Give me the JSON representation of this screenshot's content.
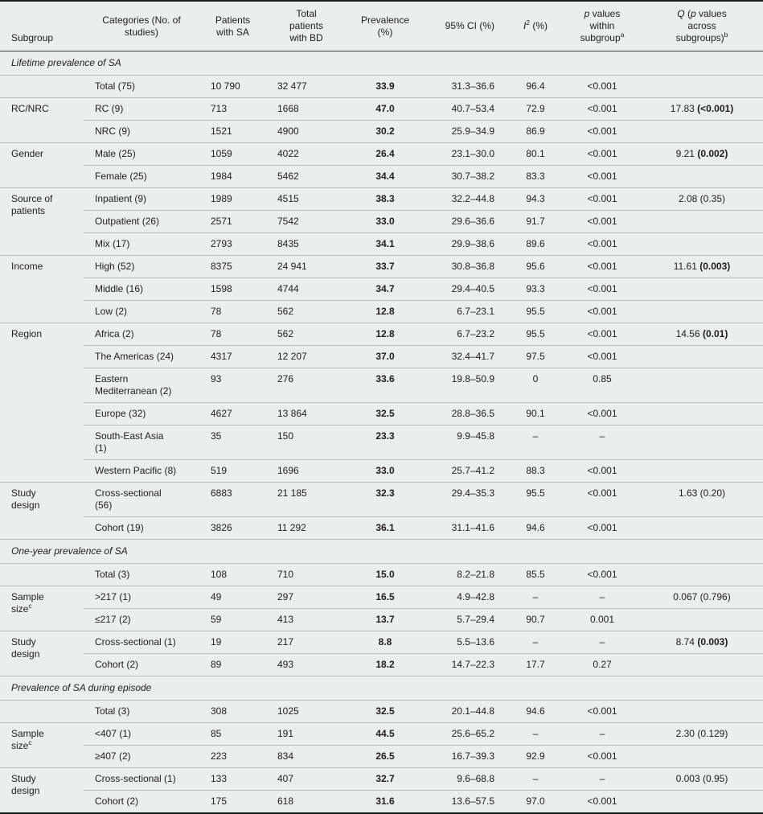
{
  "theme": {
    "background": "#e9efeb",
    "row_line": "#b6c1bb",
    "border_dark": "#1b1b1b",
    "header_line": "#3c3c3c"
  },
  "table": {
    "columns": [
      {
        "key": "subgroup",
        "segments": [
          {
            "t": "Subgroup"
          }
        ]
      },
      {
        "key": "category",
        "segments": [
          {
            "t": "Categories (No. of\nstudies)"
          }
        ]
      },
      {
        "key": "sa",
        "segments": [
          {
            "t": "Patients\nwith SA"
          }
        ]
      },
      {
        "key": "bd",
        "segments": [
          {
            "t": "Total\npatients\nwith BD"
          }
        ]
      },
      {
        "key": "prev",
        "segments": [
          {
            "t": "Prevalence\n(%)"
          }
        ]
      },
      {
        "key": "ci",
        "segments": [
          {
            "t": "95% CI (%)"
          }
        ]
      },
      {
        "key": "i2",
        "segments": [
          {
            "t": "I",
            "i": true
          },
          {
            "t": "2",
            "sup": true
          },
          {
            "t": " (%)"
          }
        ]
      },
      {
        "key": "p",
        "segments": [
          {
            "t": "p",
            "i": true
          },
          {
            "t": " values\nwithin\nsubgroup"
          },
          {
            "t": "a",
            "sup": true
          }
        ]
      },
      {
        "key": "q",
        "segments": [
          {
            "t": "Q",
            "i": true
          },
          {
            "t": " ("
          },
          {
            "t": "p",
            "i": true
          },
          {
            "t": " values\nacross\nsubgroups)"
          },
          {
            "t": "b",
            "sup": true
          }
        ]
      }
    ],
    "sections": [
      {
        "title": "Lifetime prevalence of SA",
        "groups": [
          {
            "subgroup": "",
            "rows": [
              {
                "category": "Total (75)",
                "sa": "10 790",
                "bd": "32 477",
                "prev": "33.9",
                "ci": "31.3–36.6",
                "i2": "96.4",
                "p": "<0.001"
              }
            ]
          },
          {
            "subgroup": "RC/NRC",
            "rows": [
              {
                "category": "RC (9)",
                "sa": "713",
                "bd": "1668",
                "prev": "47.0",
                "ci": "40.7–53.4",
                "i2": "72.9",
                "p": "<0.001",
                "q_stat": "17.83",
                "q_p": "<0.001",
                "q_bold": true
              },
              {
                "category": "NRC (9)",
                "sa": "1521",
                "bd": "4900",
                "prev": "30.2",
                "ci": "25.9–34.9",
                "i2": "86.9",
                "p": "<0.001"
              }
            ]
          },
          {
            "subgroup": "Gender",
            "rows": [
              {
                "category": "Male (25)",
                "sa": "1059",
                "bd": "4022",
                "prev": "26.4",
                "ci": "23.1–30.0",
                "i2": "80.1",
                "p": "<0.001",
                "q_stat": "9.21",
                "q_p": "0.002",
                "q_bold": true
              },
              {
                "category": "Female (25)",
                "sa": "1984",
                "bd": "5462",
                "prev": "34.4",
                "ci": "30.7–38.2",
                "i2": "83.3",
                "p": "<0.001"
              }
            ]
          },
          {
            "subgroup": "Source of\npatients",
            "rows": [
              {
                "category": "Inpatient (9)",
                "sa": "1989",
                "bd": "4515",
                "prev": "38.3",
                "ci": "32.2–44.8",
                "i2": "94.3",
                "p": "<0.001",
                "q_stat": "2.08",
                "q_p": "0.35",
                "q_bold": false
              },
              {
                "category": "Outpatient (26)",
                "sa": "2571",
                "bd": "7542",
                "prev": "33.0",
                "ci": "29.6–36.6",
                "i2": "91.7",
                "p": "<0.001"
              },
              {
                "category": "Mix (17)",
                "sa": "2793",
                "bd": "8435",
                "prev": "34.1",
                "ci": "29.9–38.6",
                "i2": "89.6",
                "p": "<0.001"
              }
            ]
          },
          {
            "subgroup": "Income",
            "rows": [
              {
                "category": "High (52)",
                "sa": "8375",
                "bd": "24 941",
                "prev": "33.7",
                "ci": "30.8–36.8",
                "i2": "95.6",
                "p": "<0.001",
                "q_stat": "11.61",
                "q_p": "0.003",
                "q_bold": true
              },
              {
                "category": "Middle (16)",
                "sa": "1598",
                "bd": "4744",
                "prev": "34.7",
                "ci": "29.4–40.5",
                "i2": "93.3",
                "p": "<0.001"
              },
              {
                "category": "Low (2)",
                "sa": "78",
                "bd": "562",
                "prev": "12.8",
                "ci": "6.7–23.1",
                "i2": "95.5",
                "p": "<0.001"
              }
            ]
          },
          {
            "subgroup": "Region",
            "rows": [
              {
                "category": "Africa (2)",
                "sa": "78",
                "bd": "562",
                "prev": "12.8",
                "ci": "6.7–23.2",
                "i2": "95.5",
                "p": "<0.001",
                "q_stat": "14.56",
                "q_p": "0.01",
                "q_bold": true
              },
              {
                "category": "The Americas (24)",
                "sa": "4317",
                "bd": "12 207",
                "prev": "37.0",
                "ci": "32.4–41.7",
                "i2": "97.5",
                "p": "<0.001"
              },
              {
                "category": "Eastern\nMediterranean (2)",
                "sa": "93",
                "bd": "276",
                "prev": "33.6",
                "ci": "19.8–50.9",
                "i2": "0",
                "p": "0.85"
              },
              {
                "category": "Europe (32)",
                "sa": "4627",
                "bd": "13 864",
                "prev": "32.5",
                "ci": "28.8–36.5",
                "i2": "90.1",
                "p": "<0.001"
              },
              {
                "category": "South-East Asia\n(1)",
                "sa": "35",
                "bd": "150",
                "prev": "23.3",
                "ci": "9.9–45.8",
                "i2": "–",
                "p": "–"
              },
              {
                "category": "Western Pacific (8)",
                "sa": "519",
                "bd": "1696",
                "prev": "33.0",
                "ci": "25.7–41.2",
                "i2": "88.3",
                "p": "<0.001"
              }
            ]
          },
          {
            "subgroup": "Study\ndesign",
            "rows": [
              {
                "category": "Cross-sectional\n(56)",
                "sa": "6883",
                "bd": "21 185",
                "prev": "32.3",
                "ci": "29.4–35.3",
                "i2": "95.5",
                "p": "<0.001",
                "q_stat": "1.63",
                "q_p": "0.20",
                "q_bold": false
              },
              {
                "category": "Cohort (19)",
                "sa": "3826",
                "bd": "11 292",
                "prev": "36.1",
                "ci": "31.1–41.6",
                "i2": "94.6",
                "p": "<0.001"
              }
            ]
          }
        ]
      },
      {
        "title": "One-year prevalence of SA",
        "groups": [
          {
            "subgroup": "",
            "rows": [
              {
                "category": "Total (3)",
                "sa": "108",
                "bd": "710",
                "prev": "15.0",
                "ci": "8.2–21.8",
                "i2": "85.5",
                "p": "<0.001"
              }
            ]
          },
          {
            "subgroup": "Sample\nsize",
            "subgroup_sup": "c",
            "rows": [
              {
                "category": ">217 (1)",
                "sa": "49",
                "bd": "297",
                "prev": "16.5",
                "ci": "4.9–42.8",
                "i2": "–",
                "p": "–",
                "q_stat": "0.067",
                "q_p": "0.796",
                "q_bold": false
              },
              {
                "category": "≤217 (2)",
                "sa": "59",
                "bd": "413",
                "prev": "13.7",
                "ci": "5.7–29.4",
                "i2": "90.7",
                "p": "0.001"
              }
            ]
          },
          {
            "subgroup": "Study\ndesign",
            "rows": [
              {
                "category": "Cross-sectional (1)",
                "sa": "19",
                "bd": "217",
                "prev": "8.8",
                "ci": "5.5–13.6",
                "i2": "–",
                "p": "–",
                "q_stat": "8.74",
                "q_p": "0.003",
                "q_bold": true
              },
              {
                "category": "Cohort (2)",
                "sa": "89",
                "bd": "493",
                "prev": "18.2",
                "ci": "14.7–22.3",
                "i2": "17.7",
                "p": "0.27"
              }
            ]
          }
        ]
      },
      {
        "title": "Prevalence of SA during episode",
        "groups": [
          {
            "subgroup": "",
            "rows": [
              {
                "category": "Total (3)",
                "sa": "308",
                "bd": "1025",
                "prev": "32.5",
                "ci": "20.1–44.8",
                "i2": "94.6",
                "p": "<0.001"
              }
            ]
          },
          {
            "subgroup": "Sample\nsize",
            "subgroup_sup": "c",
            "rows": [
              {
                "category": "<407 (1)",
                "sa": "85",
                "bd": "191",
                "prev": "44.5",
                "ci": "25.6–65.2",
                "i2": "–",
                "p": "–",
                "q_stat": "2.30",
                "q_p": "0.129",
                "q_bold": false
              },
              {
                "category": "≥407 (2)",
                "sa": "223",
                "bd": "834",
                "prev": "26.5",
                "ci": "16.7–39.3",
                "i2": "92.9",
                "p": "<0.001"
              }
            ]
          },
          {
            "subgroup": "Study\ndesign",
            "rows": [
              {
                "category": "Cross-sectional (1)",
                "sa": "133",
                "bd": "407",
                "prev": "32.7",
                "ci": "9.6–68.8",
                "i2": "–",
                "p": "–",
                "q_stat": "0.003",
                "q_p": "0.95",
                "q_bold": false
              },
              {
                "category": "Cohort (2)",
                "sa": "175",
                "bd": "618",
                "prev": "31.6",
                "ci": "13.6–57.5",
                "i2": "97.0",
                "p": "<0.001"
              }
            ]
          }
        ]
      }
    ]
  }
}
